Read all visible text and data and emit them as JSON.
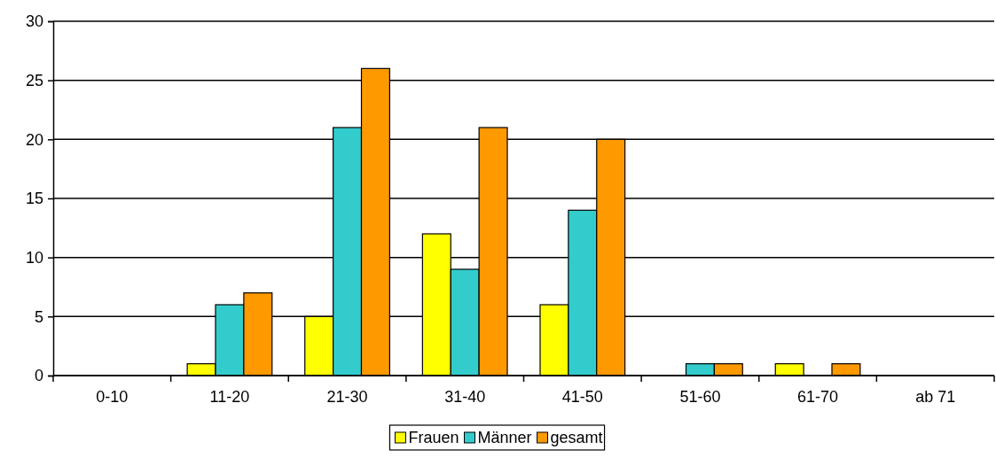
{
  "chart_data": {
    "type": "bar",
    "categories": [
      "0-10",
      "11-20",
      "21-30",
      "31-40",
      "41-50",
      "51-60",
      "61-70",
      "ab 71"
    ],
    "series": [
      {
        "name": "Frauen",
        "color": "#ffff00",
        "values": [
          0,
          1,
          5,
          12,
          6,
          0,
          1,
          0
        ]
      },
      {
        "name": "Männer",
        "color": "#33cccc",
        "values": [
          0,
          6,
          21,
          9,
          14,
          1,
          0,
          0
        ]
      },
      {
        "name": "gesamt",
        "color": "#ff9900",
        "values": [
          0,
          7,
          26,
          21,
          20,
          1,
          1,
          0
        ]
      }
    ],
    "ylim": [
      0,
      30
    ],
    "yticks": [
      0,
      5,
      10,
      15,
      20,
      25,
      30
    ],
    "grid": "y",
    "legend": "bottom"
  }
}
